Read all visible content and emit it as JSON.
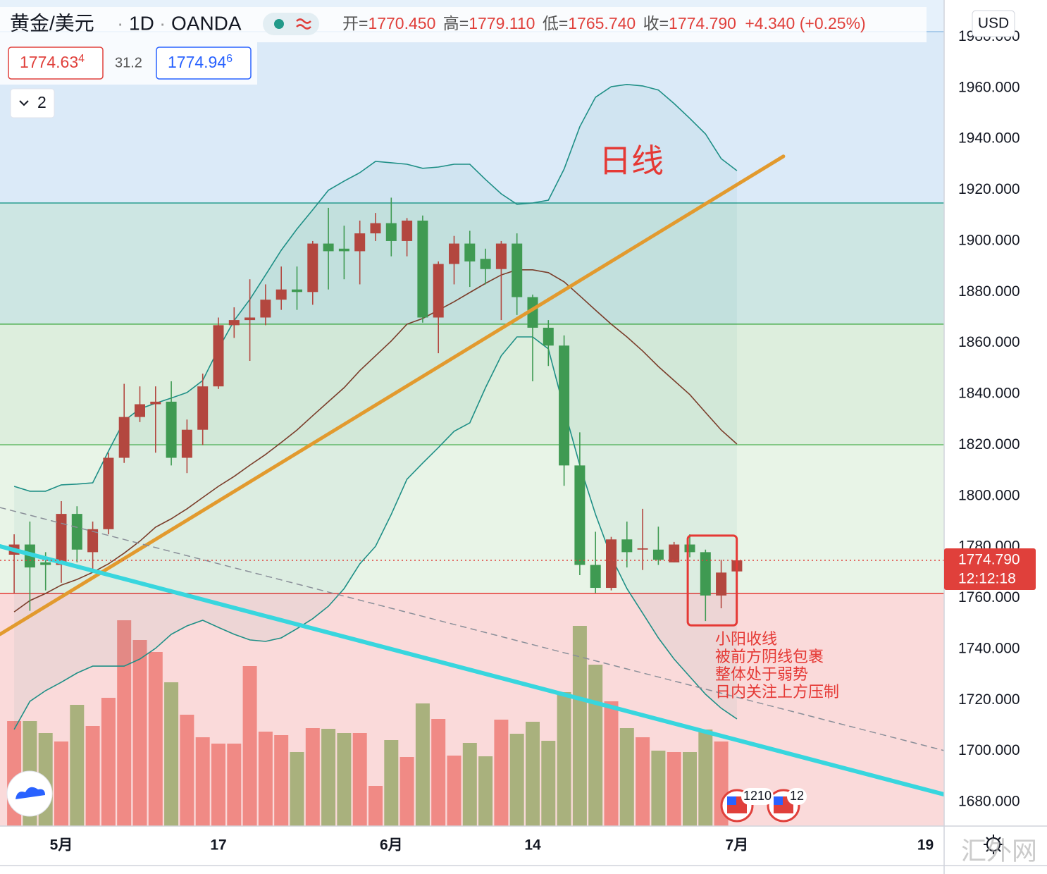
{
  "header": {
    "symbol": "黄金/美元",
    "interval": "1D",
    "source": "OANDA",
    "ohlc": [
      {
        "label": "开=",
        "value": "1770.450"
      },
      {
        "label": "高=",
        "value": "1779.110"
      },
      {
        "label": "低=",
        "value": "1765.740"
      },
      {
        "label": "收=",
        "value": "1774.790"
      }
    ],
    "change": "+4.340 (+0.25%)",
    "bid": "1774.63",
    "bid_sup": "4",
    "spread": "31.2",
    "ask": "1774.94",
    "ask_sup": "6",
    "indicators_toggle": "2",
    "currency": "USD"
  },
  "chart_data": {
    "type": "candlestick",
    "categories": [
      null,
      null,
      null,
      "5月",
      null,
      null,
      null,
      null,
      null,
      null,
      null,
      null,
      null,
      "17",
      null,
      null,
      null,
      null,
      null,
      null,
      null,
      null,
      null,
      null,
      "6月",
      null,
      null,
      null,
      null,
      null,
      null,
      null,
      null,
      "14",
      null,
      null,
      null,
      null,
      null,
      null,
      null,
      null,
      null,
      null,
      null,
      null,
      "7月",
      null,
      null,
      null,
      null,
      null,
      null,
      null,
      null,
      null,
      null,
      null,
      "19"
    ],
    "open": [
      1777,
      1781,
      1774,
      1773,
      1793,
      1778,
      1787,
      1815,
      1831,
      1836,
      1837,
      1815,
      1826,
      1843,
      1867,
      1869,
      1870,
      1877,
      1881,
      1880,
      1899,
      1897,
      1896,
      1903,
      1907,
      1900,
      1908,
      1870,
      1891,
      1899,
      1893,
      1889,
      1899,
      1878,
      1866,
      1859,
      1812,
      1773,
      1764,
      1783,
      1779,
      1779,
      1774,
      1781,
      1778,
      1761,
      1770.45,
      null,
      null,
      null,
      null,
      null,
      null,
      null,
      null,
      null,
      null,
      null,
      null
    ],
    "high": [
      1785,
      1790,
      1778,
      1798,
      1796,
      1790,
      1817,
      1844,
      1843,
      1843,
      1845,
      1830,
      1848,
      1870,
      1874,
      1885,
      1883,
      1890,
      1890,
      1900,
      1913,
      1906,
      1908,
      1911,
      1917,
      1909,
      1910,
      1892,
      1902,
      1904,
      1897,
      1900,
      1903,
      1879,
      1869,
      1863,
      1825,
      1786,
      1784,
      1790,
      1795,
      1788,
      1782,
      1785,
      1779,
      1775,
      1779.11,
      null,
      null,
      null,
      null,
      null,
      null,
      null,
      null,
      null,
      null,
      null,
      null
    ],
    "low": [
      1762,
      1755,
      1763,
      1766,
      1774,
      1771,
      1785,
      1813,
      1829,
      1817,
      1812,
      1809,
      1820,
      1842,
      1862,
      1853,
      1867,
      1873,
      1873,
      1875,
      1881,
      1885,
      1883,
      1900,
      1894,
      1894,
      1868,
      1856,
      1883,
      1882,
      1883,
      1869,
      1871,
      1845,
      1851,
      1804,
      1769,
      1762,
      1763,
      1772,
      1771,
      1773,
      1774,
      1776,
      1751,
      1756,
      1765.74,
      null,
      null,
      null,
      null,
      null,
      null,
      null,
      null,
      null,
      null,
      null,
      null
    ],
    "close": [
      1781,
      1772,
      1773,
      1793,
      1779,
      1787,
      1815,
      1831,
      1836,
      1837,
      1815,
      1826,
      1843,
      1867,
      1869,
      1870,
      1877,
      1881,
      1880,
      1899,
      1896,
      1896,
      1903,
      1907,
      1900,
      1908,
      1870,
      1891,
      1899,
      1892,
      1889,
      1899,
      1878,
      1866,
      1859,
      1812,
      1773,
      1764,
      1783,
      1778,
      1779.5,
      1775,
      1781,
      1778,
      1761,
      1770,
      1774.79,
      null,
      null,
      null,
      null,
      null,
      null,
      null,
      null,
      null,
      null,
      null,
      null
    ],
    "volume": [
      149,
      149,
      132,
      120,
      172,
      142,
      182,
      292,
      264,
      247,
      204,
      158,
      126,
      117,
      117,
      227,
      134,
      129,
      105,
      139,
      138,
      132,
      132,
      57,
      122,
      98,
      174,
      152,
      100,
      118,
      99,
      151,
      131,
      148,
      121,
      190,
      284,
      229,
      177,
      139,
      126,
      107,
      105,
      105,
      137,
      120,
      null,
      null,
      null,
      null,
      null,
      null,
      null,
      null,
      null,
      null,
      null,
      null,
      null
    ],
    "volume_ylim": [
      0,
      300
    ],
    "up_color": "#b3473f",
    "down_color": "#3f9a52",
    "volume_up_color": "#f08a85",
    "volume_down_color": "#a9b17d",
    "bands": {
      "upper": [
        1803.8,
        1801.9,
        1801.9,
        1804.4,
        1804.7,
        1805.2,
        1817.6,
        1829.5,
        1834.2,
        1836.4,
        1838.4,
        1840.6,
        1845.3,
        1857.7,
        1868.8,
        1877.1,
        1886.7,
        1896.4,
        1904.7,
        1912.2,
        1919.9,
        1923.5,
        1926.8,
        1931.2,
        1930.7,
        1930.1,
        1928.5,
        1929.0,
        1930.1,
        1930.1,
        1924.1,
        1918.5,
        1914.4,
        1914.9,
        1916.0,
        1928.2,
        1944.8,
        1956.4,
        1960.5,
        1961.4,
        1960.8,
        1959.2,
        1953.9,
        1948.1,
        1942.0,
        1932.3,
        1927.6,
        null,
        null,
        null,
        null,
        null,
        null,
        null,
        null,
        null,
        null,
        null,
        null
      ],
      "middle": [
        1754.6,
        1759.0,
        1761.8,
        1765.1,
        1767.3,
        1770.1,
        1773.4,
        1777.6,
        1782.3,
        1787.8,
        1791.1,
        1795.0,
        1799.4,
        1803.8,
        1807.7,
        1812.1,
        1816.3,
        1821.0,
        1825.9,
        1831.5,
        1837.0,
        1842.5,
        1849.2,
        1855.0,
        1860.8,
        1867.4,
        1869.6,
        1872.9,
        1876.2,
        1879.8,
        1883.4,
        1886.7,
        1888.7,
        1888.7,
        1887.6,
        1884.0,
        1878.5,
        1872.9,
        1867.4,
        1862.4,
        1856.9,
        1850.8,
        1845.3,
        1839.8,
        1832.8,
        1825.9,
        1820.4,
        null,
        null,
        null,
        null,
        null,
        null,
        null,
        null,
        null,
        null,
        null,
        null
      ],
      "lower": [
        1708.5,
        1719.5,
        1723.7,
        1727.0,
        1730.6,
        1733.3,
        1733.3,
        1733.3,
        1736.1,
        1740.3,
        1745.8,
        1749.1,
        1751.3,
        1748.5,
        1745.8,
        1743.6,
        1743.0,
        1744.4,
        1748.0,
        1751.9,
        1756.8,
        1763.7,
        1773.4,
        1780.3,
        1792.8,
        1806.6,
        1812.9,
        1819.0,
        1825.4,
        1828.7,
        1842.5,
        1855.0,
        1862.4,
        1862.4,
        1857.7,
        1834.2,
        1812.1,
        1792.8,
        1776.2,
        1763.7,
        1754.1,
        1744.4,
        1736.1,
        1729.2,
        1722.3,
        1716.8,
        1712.6,
        null,
        null,
        null,
        null,
        null,
        null,
        null,
        null,
        null,
        null,
        null,
        null
      ],
      "band_color": "#1e8f86",
      "middle_color": "#7a3d2a"
    },
    "ylim": [
      1670.6,
      1994.5
    ],
    "yticks": [
      {
        "value": 1680,
        "label": "1680.000"
      },
      {
        "value": 1700,
        "label": "1700.000"
      },
      {
        "value": 1720,
        "label": "1720.000"
      },
      {
        "value": 1740,
        "label": "1740.000"
      },
      {
        "value": 1760,
        "label": "1760.000"
      },
      {
        "value": 1780,
        "label": "1780.000"
      },
      {
        "value": 1800,
        "label": "1800.000"
      },
      {
        "value": 1820,
        "label": "1820.000"
      },
      {
        "value": 1840,
        "label": "1840.000"
      },
      {
        "value": 1860,
        "label": "1860.000"
      },
      {
        "value": 1880,
        "label": "1880.000"
      },
      {
        "value": 1900,
        "label": "1900.000"
      },
      {
        "value": 1920,
        "label": "1920.000"
      },
      {
        "value": 1940,
        "label": "1940.000"
      },
      {
        "value": 1960,
        "label": "1960.000"
      },
      {
        "value": 1980,
        "label": "1980.000"
      }
    ],
    "levels": [
      1982.1,
      1914.9,
      1867.4,
      1820.1,
      1761.8
    ],
    "level_colors": [
      "#9ec5e8",
      "#2a9d8f",
      "#4caf50",
      "#66bb6a",
      "#e53935"
    ],
    "zone_colors": [
      "#e6f1fb",
      "#dbeaf8",
      "#cde6e3",
      "#ddeedd",
      "#e8f4e7",
      "#fadada"
    ],
    "trendlines": [
      {
        "from": [
          -0.9,
          1745.8
        ],
        "to": [
          48.96,
          1933.2
        ],
        "color": "#e29a2e",
        "width": 5
      },
      {
        "from": [
          -0.9,
          1780.3
        ],
        "to": [
          59.19,
          1683.0
        ],
        "color": "#38d6de",
        "width": 6
      },
      {
        "from": [
          -0.9,
          1795.5
        ],
        "to": [
          59.19,
          1700.2
        ],
        "color": "#8a8f99",
        "width": 1.5,
        "dashed": true
      }
    ],
    "highlight": {
      "x": [
        42.87,
        45.99
      ],
      "y": [
        1784.5,
        1749.3
      ],
      "color": "#e53935"
    },
    "last_price_label": "1774.790",
    "countdown": "12:12:18",
    "annotation": "日线",
    "notes": [
      "小阳收线",
      "被前方阴线包裹",
      "整体处于弱势",
      "日内关注上方压制"
    ]
  },
  "events": [
    "1210",
    "12"
  ],
  "watermark": "汇外网"
}
